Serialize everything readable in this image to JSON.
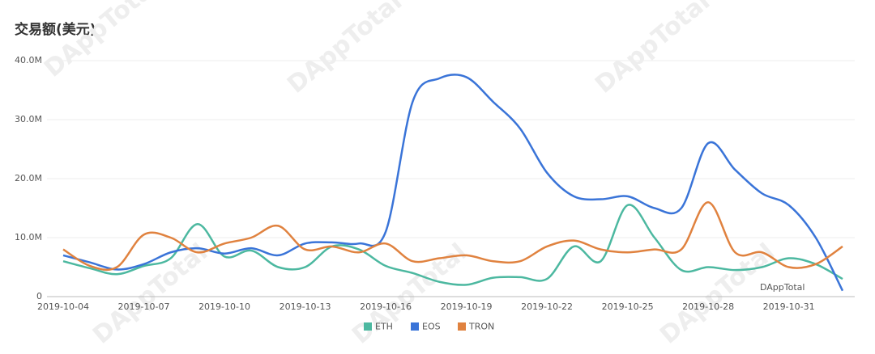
{
  "chart_data": {
    "type": "line",
    "title": "交易额(美元)",
    "watermark": "DAppTotal",
    "categories": [
      "2019-10-04",
      null,
      null,
      "2019-10-07",
      null,
      null,
      "2019-10-10",
      null,
      null,
      "2019-10-13",
      null,
      null,
      "2019-10-16",
      null,
      null,
      "2019-10-19",
      null,
      null,
      "2019-10-22",
      null,
      null,
      "2019-10-25",
      null,
      null,
      "2019-10-28",
      null,
      null,
      "2019-10-31",
      null,
      null
    ],
    "series": [
      {
        "name": "ETH",
        "color": "#4cb8a0",
        "values": [
          6000000,
          4800000,
          3800000,
          5200000,
          6500000,
          12300000,
          6800000,
          7800000,
          5000000,
          5000000,
          8500000,
          8000000,
          5200000,
          4000000,
          2500000,
          2000000,
          3200000,
          3300000,
          3000000,
          8500000,
          6000000,
          15500000,
          10000000,
          4500000,
          5000000,
          4500000,
          5000000,
          6500000,
          5500000,
          3000000
        ]
      },
      {
        "name": "EOS",
        "color": "#3a74d8",
        "values": [
          7000000,
          5800000,
          4600000,
          5500000,
          7500000,
          8200000,
          7300000,
          8200000,
          7000000,
          9000000,
          9200000,
          9000000,
          11000000,
          33000000,
          37000000,
          37200000,
          33000000,
          28500000,
          21000000,
          17000000,
          16500000,
          17000000,
          15000000,
          15000000,
          26000000,
          21500000,
          17500000,
          15500000,
          10000000,
          1000000
        ]
      },
      {
        "name": "TRON",
        "color": "#e0823f",
        "values": [
          8000000,
          5200000,
          5000000,
          10500000,
          10000000,
          7500000,
          9000000,
          10000000,
          12000000,
          8000000,
          8500000,
          7500000,
          9000000,
          6000000,
          6500000,
          7000000,
          6000000,
          6000000,
          8500000,
          9500000,
          8000000,
          7500000,
          8000000,
          8000000,
          16000000,
          7500000,
          7500000,
          5000000,
          5500000,
          8500000
        ]
      }
    ],
    "ylim": [
      0,
      40000000
    ],
    "yticks": [
      0,
      {
        "value": 10000000,
        "label": "10.0M"
      },
      {
        "value": 20000000,
        "label": "20.0M"
      },
      {
        "value": 30000000,
        "label": "30.0M"
      },
      {
        "value": 40000000,
        "label": "40.0M"
      }
    ],
    "grid": true,
    "legend": "bottom"
  }
}
